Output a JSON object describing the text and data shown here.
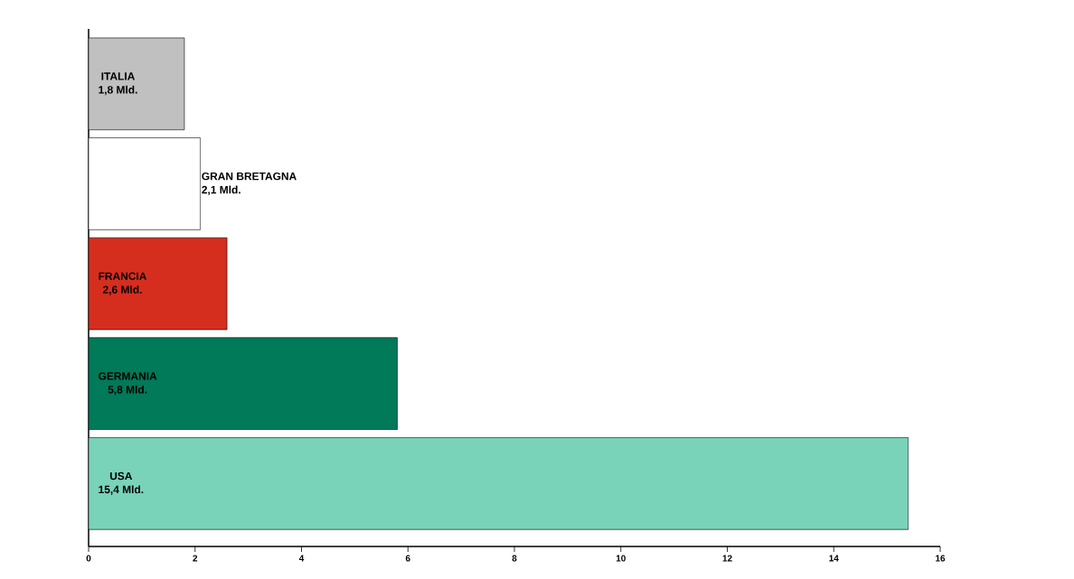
{
  "chart_data": {
    "type": "bar",
    "orientation": "horizontal",
    "categories": [
      "ITALIA",
      "GRAN BRETAGNA",
      "FRANCIA",
      "GERMANIA",
      "USA"
    ],
    "values": [
      1.8,
      2.1,
      2.6,
      5.8,
      15.4
    ],
    "value_labels": [
      "1,8 Mld.",
      "2,1 Mld.",
      "2,6 Mld.",
      "5,8 Mld.",
      "15,4 Mld."
    ],
    "colors": [
      "#c0c0c0",
      "#ffffff",
      "#d52e1f",
      "#007a58",
      "#78d3b9"
    ],
    "xlim": [
      0,
      16
    ],
    "xticks": [
      0,
      2,
      4,
      6,
      8,
      10,
      12,
      14,
      16
    ],
    "tick_labels": "x"
  }
}
